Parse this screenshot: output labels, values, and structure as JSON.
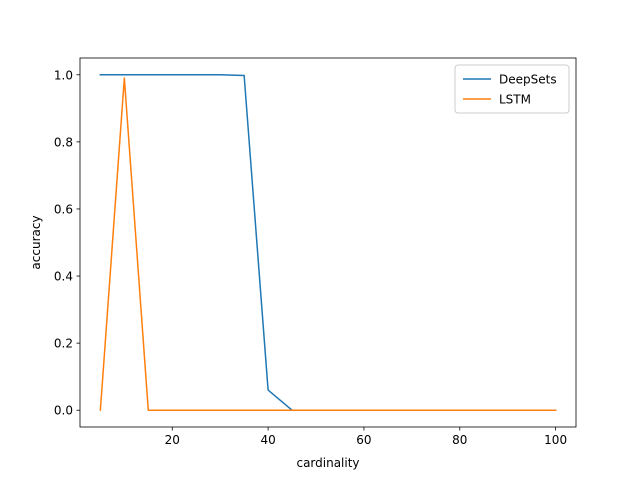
{
  "chart_data": {
    "type": "line",
    "title": "",
    "xlabel": "cardinality",
    "ylabel": "accuracy",
    "xlim": [
      0.75,
      104.25
    ],
    "ylim": [
      -0.05,
      1.05
    ],
    "xticks": [
      20,
      40,
      60,
      80,
      100
    ],
    "yticks": [
      0.0,
      0.2,
      0.4,
      0.6,
      0.8,
      1.0
    ],
    "grid": false,
    "legend": "top-right",
    "x": [
      5,
      10,
      15,
      20,
      25,
      30,
      35,
      40,
      45,
      50,
      55,
      60,
      65,
      70,
      75,
      80,
      85,
      90,
      95,
      100
    ],
    "series": [
      {
        "name": "DeepSets",
        "color": "#1f77b4",
        "values": [
          1.0,
          1.0,
          1.0,
          1.0,
          1.0,
          1.0,
          0.998,
          0.06,
          0.0,
          0.0,
          0.0,
          0.0,
          0.0,
          0.0,
          0.0,
          0.0,
          0.0,
          0.0,
          0.0,
          0.0
        ]
      },
      {
        "name": "LSTM",
        "color": "#ff7f0e",
        "values": [
          0.0,
          0.99,
          0.0,
          0.0,
          0.0,
          0.0,
          0.0,
          0.0,
          0.0,
          0.0,
          0.0,
          0.0,
          0.0,
          0.0,
          0.0,
          0.0,
          0.0,
          0.0,
          0.0,
          0.0
        ]
      }
    ]
  }
}
